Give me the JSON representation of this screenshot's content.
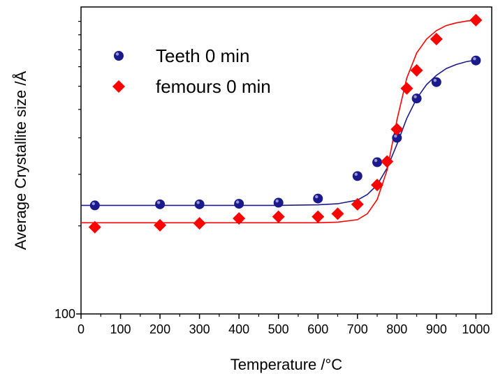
{
  "chart_data": {
    "type": "scatter",
    "xlabel": "Temperature /°C",
    "ylabel": "Average Crystallite size /Å",
    "xlim": [
      0,
      1040
    ],
    "xticks": [
      0,
      100,
      200,
      300,
      400,
      500,
      600,
      700,
      800,
      900,
      1000
    ],
    "ylim": [
      100,
      1120
    ],
    "y_scale": "log",
    "y_major_tick_label": "100",
    "grid": false,
    "legend_position": "top-left",
    "series": [
      {
        "name": "Teeth 0 min",
        "color": "#1a1a8c",
        "marker": "circle",
        "x": [
          35,
          200,
          300,
          400,
          500,
          600,
          700,
          750,
          800,
          850,
          900,
          1000
        ],
        "y": [
          235,
          237,
          237,
          238,
          240,
          248,
          296,
          330,
          400,
          545,
          620,
          735
        ],
        "fit": {
          "x": [
            0,
            100,
            200,
            300,
            400,
            500,
            600,
            650,
            700,
            725,
            750,
            775,
            800,
            825,
            850,
            875,
            900,
            925,
            950,
            975,
            1000
          ],
          "y": [
            235,
            235,
            235,
            235,
            235,
            235,
            236,
            238,
            245,
            256,
            276,
            315,
            380,
            466,
            545,
            608,
            654,
            690,
            712,
            728,
            738
          ]
        }
      },
      {
        "name": "femours 0 min",
        "color": "#ff0000",
        "marker": "diamond",
        "x": [
          35,
          200,
          300,
          400,
          500,
          600,
          650,
          700,
          750,
          775,
          800,
          825,
          850,
          900,
          1000
        ],
        "y": [
          198,
          201,
          204,
          212,
          215,
          215,
          220,
          237,
          276,
          332,
          428,
          590,
          680,
          870,
          1010
        ],
        "fit": {
          "x": [
            0,
            100,
            200,
            300,
            400,
            500,
            600,
            650,
            700,
            725,
            750,
            775,
            800,
            825,
            850,
            875,
            900,
            925,
            950,
            975,
            1000
          ],
          "y": [
            205,
            205,
            205,
            205,
            205,
            205,
            205,
            206,
            210,
            220,
            246,
            310,
            460,
            640,
            780,
            870,
            930,
            968,
            988,
            1002,
            1010
          ]
        }
      }
    ]
  }
}
